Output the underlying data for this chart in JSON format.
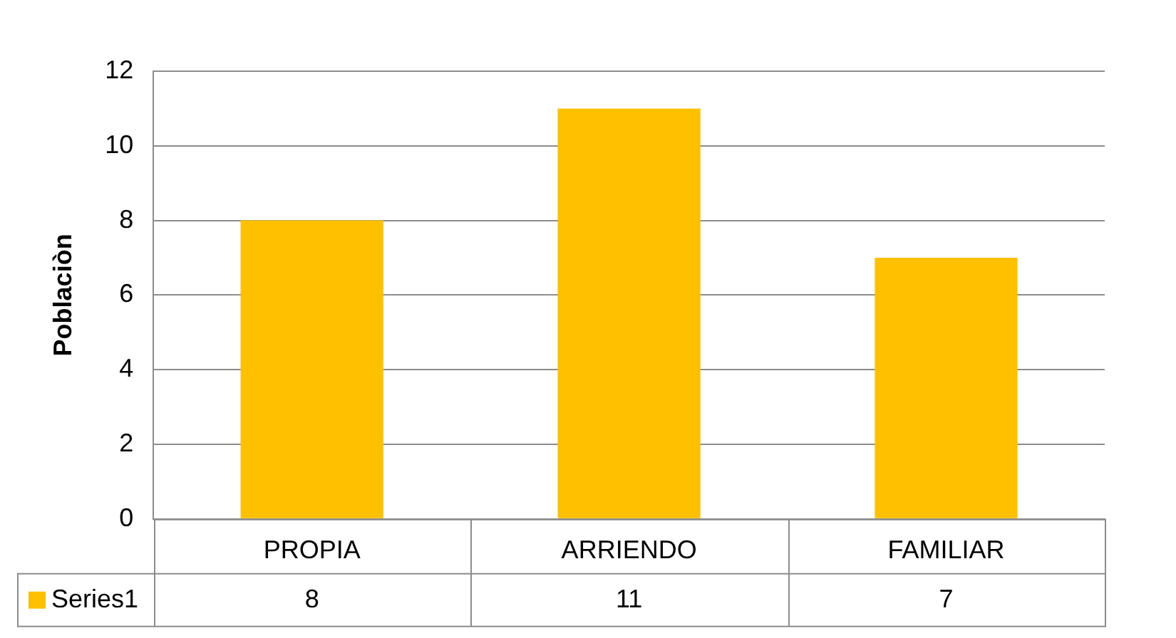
{
  "chart_data": {
    "type": "bar",
    "ylabel": "Poblaciòn",
    "categories": [
      "PROPIA",
      "ARRIENDO",
      "FAMILIAR"
    ],
    "series": [
      {
        "name": "Series1",
        "color": "#ffc000",
        "values": [
          8,
          11,
          7
        ]
      }
    ],
    "ylim": [
      0,
      12
    ],
    "yticks": [
      0,
      2,
      4,
      6,
      8,
      10,
      12
    ],
    "grid": "y",
    "data_labels": true,
    "legend": "bottom"
  }
}
